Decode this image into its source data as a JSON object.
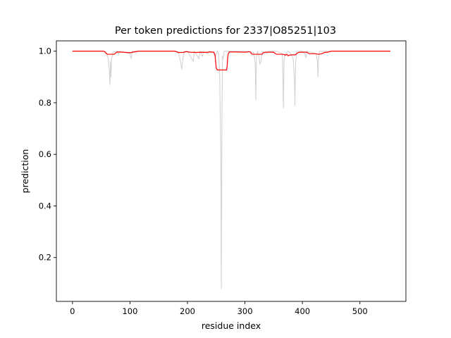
{
  "chart_data": {
    "type": "line",
    "title": "Per token predictions for 2337|O85251|103",
    "xlabel": "residue index",
    "ylabel": "prediction",
    "xlim": [
      -28,
      580
    ],
    "ylim": [
      0.03,
      1.04
    ],
    "xticks": [
      0,
      100,
      200,
      300,
      400,
      500
    ],
    "yticks": [
      0.2,
      0.4,
      0.6,
      0.8,
      1.0
    ],
    "ytick_labels": [
      "0.2",
      "0.4",
      "0.6",
      "0.8",
      "1.0"
    ],
    "grid": false,
    "series": [
      {
        "color": "#d3d3d3",
        "points": [
          [
            0,
            1.0
          ],
          [
            55,
            1.0
          ],
          [
            60,
            0.99
          ],
          [
            62,
            0.97
          ],
          [
            64,
            0.93
          ],
          [
            65,
            0.87
          ],
          [
            66,
            0.96
          ],
          [
            67,
            0.9
          ],
          [
            68,
            0.97
          ],
          [
            70,
            0.995
          ],
          [
            78,
            1.0
          ],
          [
            80,
            0.985
          ],
          [
            82,
            1.0
          ],
          [
            100,
            0.99
          ],
          [
            102,
            0.97
          ],
          [
            104,
            1.0
          ],
          [
            110,
            1.0
          ],
          [
            180,
            1.0
          ],
          [
            185,
            0.99
          ],
          [
            188,
            0.96
          ],
          [
            190,
            0.93
          ],
          [
            192,
            0.97
          ],
          [
            195,
            1.0
          ],
          [
            200,
            1.0
          ],
          [
            210,
            0.96
          ],
          [
            212,
            1.0
          ],
          [
            220,
            0.97
          ],
          [
            222,
            1.0
          ],
          [
            226,
            0.98
          ],
          [
            228,
            1.0
          ],
          [
            235,
            0.99
          ],
          [
            238,
            1.0
          ],
          [
            244,
            0.995
          ],
          [
            248,
            0.98
          ],
          [
            252,
            1.0
          ],
          [
            254,
            0.99
          ],
          [
            256,
            0.92
          ],
          [
            258,
            0.6
          ],
          [
            259,
            0.08
          ],
          [
            260,
            0.75
          ],
          [
            261,
            0.98
          ],
          [
            262,
            0.97
          ],
          [
            264,
            1.0
          ],
          [
            272,
            1.0
          ],
          [
            300,
            1.0
          ],
          [
            315,
            0.995
          ],
          [
            318,
            0.95
          ],
          [
            319,
            0.81
          ],
          [
            320,
            0.98
          ],
          [
            322,
            1.0
          ],
          [
            325,
            0.97
          ],
          [
            326,
            0.95
          ],
          [
            328,
            0.96
          ],
          [
            330,
            1.0
          ],
          [
            338,
            0.99
          ],
          [
            340,
            1.0
          ],
          [
            355,
            1.0
          ],
          [
            365,
            0.99
          ],
          [
            366,
            0.9
          ],
          [
            367,
            0.78
          ],
          [
            368,
            0.96
          ],
          [
            370,
            0.99
          ],
          [
            375,
            1.0
          ],
          [
            380,
            0.99
          ],
          [
            384,
            0.97
          ],
          [
            386,
            0.89
          ],
          [
            387,
            0.79
          ],
          [
            388,
            0.95
          ],
          [
            390,
            1.0
          ],
          [
            400,
            1.0
          ],
          [
            404,
            0.99
          ],
          [
            406,
            0.975
          ],
          [
            408,
            1.0
          ],
          [
            424,
            0.99
          ],
          [
            426,
            0.96
          ],
          [
            427,
            0.9
          ],
          [
            428,
            0.97
          ],
          [
            430,
            1.0
          ],
          [
            445,
            1.0
          ],
          [
            553,
            1.0
          ]
        ]
      },
      {
        "color": "#ff0000",
        "points": [
          [
            0,
            1.0
          ],
          [
            54,
            1.0
          ],
          [
            57,
            0.997
          ],
          [
            59,
            0.99
          ],
          [
            61,
            0.988
          ],
          [
            73,
            0.988
          ],
          [
            76,
            0.995
          ],
          [
            79,
            0.997
          ],
          [
            88,
            0.996
          ],
          [
            100,
            0.994
          ],
          [
            110,
            0.998
          ],
          [
            115,
            1.0
          ],
          [
            178,
            1.0
          ],
          [
            182,
            0.997
          ],
          [
            185,
            0.995
          ],
          [
            192,
            0.995
          ],
          [
            198,
            0.998
          ],
          [
            205,
            0.996
          ],
          [
            215,
            0.995
          ],
          [
            225,
            0.996
          ],
          [
            230,
            0.995
          ],
          [
            240,
            0.997
          ],
          [
            246,
            0.996
          ],
          [
            248,
            0.985
          ],
          [
            249,
            0.96
          ],
          [
            250,
            0.935
          ],
          [
            252,
            0.927
          ],
          [
            268,
            0.927
          ],
          [
            269,
            0.94
          ],
          [
            270,
            0.975
          ],
          [
            271,
            0.99
          ],
          [
            273,
            0.997
          ],
          [
            285,
            0.997
          ],
          [
            300,
            0.996
          ],
          [
            308,
            0.998
          ],
          [
            310,
            0.996
          ],
          [
            311,
            0.99
          ],
          [
            314,
            0.988
          ],
          [
            330,
            0.988
          ],
          [
            332,
            0.994
          ],
          [
            336,
            0.996
          ],
          [
            350,
            0.996
          ],
          [
            353,
            0.99
          ],
          [
            356,
            0.988
          ],
          [
            364,
            0.988
          ],
          [
            368,
            0.987
          ],
          [
            370,
            0.984
          ],
          [
            373,
            0.988
          ],
          [
            375,
            0.982
          ],
          [
            378,
            0.985
          ],
          [
            388,
            0.986
          ],
          [
            392,
            0.994
          ],
          [
            396,
            0.996
          ],
          [
            408,
            0.996
          ],
          [
            412,
            0.99
          ],
          [
            415,
            0.99
          ],
          [
            422,
            0.99
          ],
          [
            428,
            0.988
          ],
          [
            434,
            0.99
          ],
          [
            438,
            0.995
          ],
          [
            444,
            0.996
          ],
          [
            450,
            1.0
          ],
          [
            553,
            1.0
          ]
        ]
      }
    ]
  }
}
